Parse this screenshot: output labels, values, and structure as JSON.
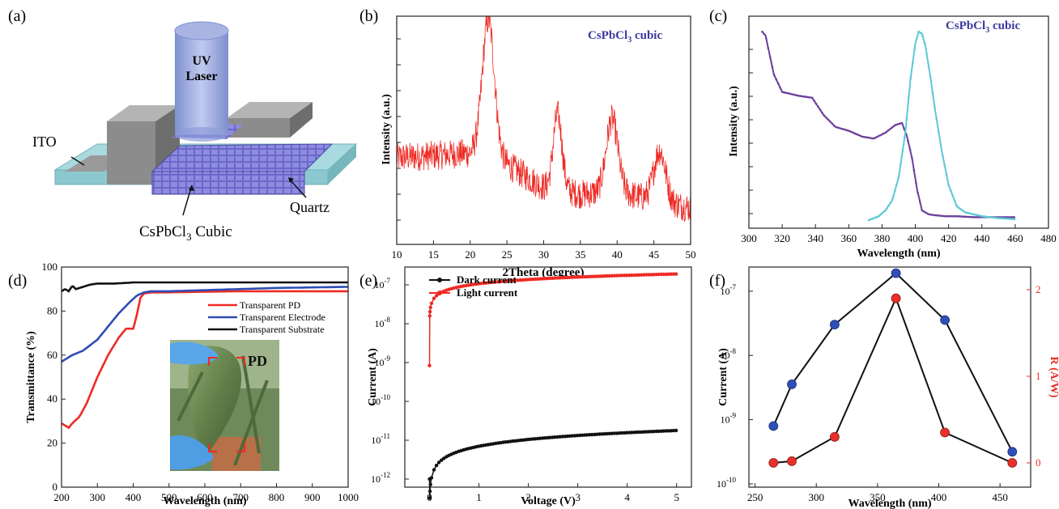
{
  "chart_data": [
    {
      "panel": "(a)",
      "type": "diagram",
      "labels": {
        "laser_line1": "UV",
        "laser_line2": "Laser",
        "ito": "ITO",
        "quartz": "Quartz",
        "cubic": "CsPbCl",
        "cubic_sub": "3",
        "cubic_tail": " Cubic"
      }
    },
    {
      "panel": "(b)",
      "type": "line",
      "annotation": "CsPbCl",
      "annotation_sub": "3",
      "annotation_tail": " cubic",
      "xlabel": "2Theta (degree)",
      "ylabel": "Intensity (a.u.)",
      "xlim": [
        10,
        50
      ],
      "xticks": [
        "10",
        "15",
        "20",
        "25",
        "30",
        "35",
        "40",
        "45",
        "50"
      ],
      "color": "#ee2a24",
      "peaks": [
        {
          "x": 22.5,
          "height": 0.55,
          "width": 0.8
        },
        {
          "x": 31.9,
          "height": 0.33,
          "width": 0.6
        },
        {
          "x": 39.3,
          "height": 0.32,
          "width": 0.8
        },
        {
          "x": 45.8,
          "height": 0.22,
          "width": 0.8
        }
      ],
      "baseline": [
        [
          10,
          0.38
        ],
        [
          20,
          0.4
        ],
        [
          22,
          0.45
        ],
        [
          25,
          0.35
        ],
        [
          30,
          0.25
        ],
        [
          35,
          0.22
        ],
        [
          40,
          0.23
        ],
        [
          50,
          0.16
        ]
      ]
    },
    {
      "panel": "(c)",
      "type": "line",
      "annotation": "CsPbCl",
      "annotation_sub": "3",
      "annotation_tail": " cubic",
      "xlabel": "Wavelength (nm)",
      "ylabel": "Intensity (a.u.)",
      "xlim": [
        300,
        480
      ],
      "xticks": [
        "300",
        "320",
        "340",
        "360",
        "380",
        "400",
        "420",
        "440",
        "460",
        "480"
      ],
      "series": [
        {
          "color": "#6a3f9c",
          "x": [
            308,
            310,
            315,
            320,
            330,
            338,
            345,
            352,
            360,
            368,
            375,
            382,
            388,
            392,
            395,
            398,
            401,
            404,
            408,
            412,
            418,
            425,
            435,
            445,
            460
          ],
          "y": [
            0.97,
            0.95,
            0.75,
            0.66,
            0.64,
            0.63,
            0.54,
            0.48,
            0.46,
            0.43,
            0.42,
            0.45,
            0.49,
            0.5,
            0.43,
            0.32,
            0.16,
            0.05,
            0.03,
            0.025,
            0.02,
            0.02,
            0.015,
            0.015,
            0.015
          ]
        },
        {
          "color": "#5dc8d6",
          "x": [
            372,
            378,
            382,
            386,
            390,
            394,
            397,
            400,
            402,
            404,
            406,
            409,
            412,
            416,
            420,
            425,
            430,
            440,
            450,
            460
          ],
          "y": [
            0.0,
            0.02,
            0.05,
            0.1,
            0.22,
            0.45,
            0.72,
            0.91,
            0.97,
            0.96,
            0.9,
            0.74,
            0.56,
            0.35,
            0.18,
            0.07,
            0.04,
            0.02,
            0.01,
            0.005
          ]
        }
      ]
    },
    {
      "panel": "(d)",
      "type": "line",
      "xlabel": "Wavelength (nm)",
      "ylabel": "Transmittance (%)",
      "xlim": [
        200,
        1000
      ],
      "ylim": [
        0,
        100
      ],
      "xticks": [
        "200",
        "300",
        "400",
        "500",
        "600",
        "700",
        "800",
        "900",
        "1000"
      ],
      "yticks": [
        "0",
        "20",
        "40",
        "60",
        "80",
        "100"
      ],
      "inset_label": "PD",
      "series": [
        {
          "name": "Transparent PD",
          "color": "#ee2a24",
          "x": [
            200,
            210,
            220,
            230,
            250,
            270,
            300,
            330,
            360,
            380,
            390,
            400,
            410,
            420,
            430,
            450,
            500,
            600,
            700,
            800,
            1000
          ],
          "y": [
            29,
            28,
            27,
            29,
            32,
            38,
            50,
            60,
            68,
            72,
            72,
            72,
            78,
            86,
            88,
            88.5,
            88.5,
            88.8,
            89,
            89,
            89
          ]
        },
        {
          "name": "Transparent Electrode",
          "color": "#2e4db4",
          "x": [
            200,
            230,
            260,
            300,
            330,
            360,
            390,
            410,
            430,
            450,
            500,
            600,
            800,
            1000
          ],
          "y": [
            57,
            60,
            62,
            67,
            73,
            79,
            84,
            87,
            88.5,
            89,
            89,
            89.5,
            90.5,
            91
          ]
        },
        {
          "name": "Transparent Substrate",
          "color": "#111111",
          "x": [
            200,
            210,
            220,
            230,
            240,
            260,
            280,
            300,
            350,
            400,
            500,
            700,
            1000
          ],
          "y": [
            89,
            90,
            89,
            91.5,
            90,
            91,
            92,
            92.5,
            92.5,
            93,
            93,
            93,
            93
          ]
        }
      ]
    },
    {
      "panel": "(e)",
      "type": "line",
      "xlabel": "Voltage (V)",
      "ylabel": "Current (A)",
      "xlim": [
        -0.5,
        5.3
      ],
      "ylog": [
        -12,
        -6.75
      ],
      "xticks": [
        "0",
        "1",
        "2",
        "3",
        "4",
        "5"
      ],
      "ytick_base": "10",
      "ytick_exps": [
        "-12",
        "-11",
        "-10",
        "-9",
        "-8",
        "-7"
      ],
      "series": [
        {
          "name": "Dark current",
          "color": "#111111",
          "logA": -10.75,
          "logB": -11.3
        },
        {
          "name": "Light current",
          "color": "#ee2a24",
          "logA": -6.72,
          "logB": -8.28
        }
      ]
    },
    {
      "panel": "(f)",
      "type": "scatter",
      "xlabel": "Wavelength (nm)",
      "ylabel": "Current (A)",
      "ylabel_right": "R (A/W)",
      "xlim": [
        245,
        475
      ],
      "xticks": [
        "250",
        "300",
        "350",
        "400",
        "450"
      ],
      "ytick_base": "10",
      "ytick_exps": [
        "-10",
        "-9",
        "-8",
        "-7"
      ],
      "yticks_right": [
        "0",
        "1",
        "2"
      ],
      "y_right_color": "#e8302a",
      "x": [
        265,
        280,
        315,
        365,
        405,
        460
      ],
      "series": [
        {
          "name": "Current",
          "color": "#2f4fb8",
          "log_values": [
            -9.1,
            -8.45,
            -7.52,
            -6.72,
            -7.45,
            -9.5
          ]
        },
        {
          "name": "R",
          "color": "#e8302a",
          "values": [
            0.0,
            0.02,
            0.3,
            1.9,
            0.35,
            0.0
          ]
        }
      ]
    }
  ]
}
